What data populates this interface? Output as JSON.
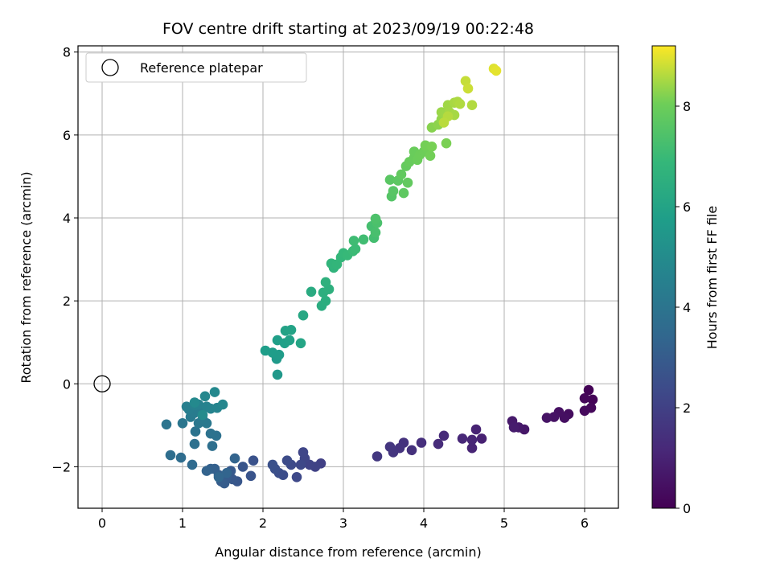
{
  "chart_data": {
    "type": "scatter",
    "title": "FOV centre drift starting at 2023/09/19 00:22:48",
    "xlabel": "Angular distance from reference (arcmin)",
    "ylabel": "Rotation from reference (arcmin)",
    "xlim": [
      -0.3,
      6.42
    ],
    "ylim": [
      -3.0,
      8.15
    ],
    "xticks": [
      0,
      1,
      2,
      3,
      4,
      5,
      6
    ],
    "yticks": [
      -2,
      0,
      2,
      4,
      6,
      8
    ],
    "xtick_labels": [
      "0",
      "1",
      "2",
      "3",
      "4",
      "5",
      "6"
    ],
    "ytick_labels": [
      "−2",
      "0",
      "2",
      "4",
      "6",
      "8"
    ],
    "grid": true,
    "legend": {
      "position": "top-left",
      "entries": [
        {
          "label": "Reference platepar",
          "marker": "open-circle",
          "x": 0,
          "y": 0
        }
      ]
    },
    "colorbar": {
      "label": "Hours from first FF file",
      "colormap": "viridis",
      "range": [
        0,
        9.2
      ],
      "ticks": [
        0,
        2,
        4,
        6,
        8
      ],
      "tick_labels": [
        "0",
        "2",
        "4",
        "6",
        "8"
      ]
    },
    "points": [
      [
        6.05,
        -0.15,
        0.05
      ],
      [
        6.1,
        -0.38,
        0.1
      ],
      [
        6.0,
        -0.35,
        0.15
      ],
      [
        6.08,
        -0.58,
        0.2
      ],
      [
        6.0,
        -0.65,
        0.25
      ],
      [
        5.8,
        -0.73,
        0.35
      ],
      [
        5.75,
        -0.82,
        0.4
      ],
      [
        5.68,
        -0.68,
        0.45
      ],
      [
        5.62,
        -0.8,
        0.5
      ],
      [
        5.53,
        -0.82,
        0.55
      ],
      [
        5.25,
        -1.1,
        0.65
      ],
      [
        5.18,
        -1.05,
        0.7
      ],
      [
        5.1,
        -0.9,
        0.75
      ],
      [
        5.12,
        -1.05,
        0.8
      ],
      [
        4.72,
        -1.32,
        0.95
      ],
      [
        4.65,
        -1.1,
        1.0
      ],
      [
        4.6,
        -1.55,
        1.05
      ],
      [
        4.6,
        -1.35,
        1.1
      ],
      [
        4.48,
        -1.32,
        1.15
      ],
      [
        4.25,
        -1.25,
        1.25
      ],
      [
        4.18,
        -1.45,
        1.3
      ],
      [
        3.97,
        -1.42,
        1.4
      ],
      [
        3.85,
        -1.6,
        1.45
      ],
      [
        3.75,
        -1.42,
        1.5
      ],
      [
        3.7,
        -1.55,
        1.55
      ],
      [
        3.62,
        -1.65,
        1.6
      ],
      [
        3.58,
        -1.52,
        1.65
      ],
      [
        3.42,
        -1.75,
        1.7
      ],
      [
        2.72,
        -1.92,
        2.0
      ],
      [
        2.65,
        -2.0,
        2.05
      ],
      [
        2.58,
        -1.95,
        2.1
      ],
      [
        2.52,
        -1.8,
        2.15
      ],
      [
        2.5,
        -1.65,
        2.2
      ],
      [
        2.47,
        -1.95,
        2.25
      ],
      [
        2.42,
        -2.25,
        2.3
      ],
      [
        2.35,
        -1.95,
        2.35
      ],
      [
        2.3,
        -1.85,
        2.4
      ],
      [
        2.25,
        -2.2,
        2.45
      ],
      [
        2.2,
        -2.15,
        2.5
      ],
      [
        2.15,
        -2.05,
        2.55
      ],
      [
        2.12,
        -1.95,
        2.6
      ],
      [
        1.88,
        -1.85,
        2.65
      ],
      [
        1.85,
        -2.22,
        2.7
      ],
      [
        1.75,
        -2.0,
        2.75
      ],
      [
        1.68,
        -2.35,
        2.8
      ],
      [
        1.62,
        -2.3,
        2.85
      ],
      [
        1.6,
        -2.1,
        2.9
      ],
      [
        1.55,
        -2.25,
        2.95
      ],
      [
        1.52,
        -2.4,
        3.0
      ],
      [
        1.48,
        -2.35,
        3.05
      ],
      [
        1.45,
        -2.2,
        3.1
      ],
      [
        1.4,
        -2.05,
        3.15
      ],
      [
        1.35,
        -2.05,
        3.2
      ],
      [
        1.3,
        -2.1,
        3.25
      ],
      [
        1.65,
        -1.8,
        3.3
      ],
      [
        1.55,
        -2.15,
        3.35
      ],
      [
        1.45,
        -2.25,
        3.4
      ],
      [
        1.12,
        -1.95,
        3.6
      ],
      [
        0.98,
        -1.78,
        3.65
      ],
      [
        0.85,
        -1.72,
        3.7
      ],
      [
        1.37,
        -1.5,
        3.75
      ],
      [
        1.15,
        -1.45,
        3.8
      ],
      [
        1.42,
        -1.25,
        3.85
      ],
      [
        1.35,
        -1.2,
        3.9
      ],
      [
        1.16,
        -1.15,
        3.95
      ],
      [
        0.8,
        -0.98,
        4.0
      ],
      [
        1.0,
        -0.95,
        4.05
      ],
      [
        1.2,
        -0.95,
        4.1
      ],
      [
        1.3,
        -0.95,
        4.15
      ],
      [
        1.25,
        -0.85,
        4.2
      ],
      [
        1.1,
        -0.8,
        4.25
      ],
      [
        1.15,
        -0.7,
        4.3
      ],
      [
        1.22,
        -0.65,
        4.35
      ],
      [
        1.08,
        -0.62,
        4.4
      ],
      [
        1.05,
        -0.55,
        4.45
      ],
      [
        1.15,
        -0.52,
        4.5
      ],
      [
        1.2,
        -0.5,
        4.55
      ],
      [
        1.3,
        -0.55,
        4.6
      ],
      [
        1.35,
        -0.6,
        4.65
      ],
      [
        1.43,
        -0.58,
        4.7
      ],
      [
        1.5,
        -0.5,
        4.75
      ],
      [
        1.28,
        -0.3,
        4.8
      ],
      [
        1.4,
        -0.2,
        4.85
      ],
      [
        1.15,
        -0.45,
        4.9
      ],
      [
        1.25,
        -0.75,
        4.95
      ],
      [
        2.18,
        0.22,
        5.5
      ],
      [
        2.17,
        0.6,
        5.6
      ],
      [
        2.2,
        0.7,
        5.65
      ],
      [
        2.12,
        0.75,
        5.7
      ],
      [
        2.03,
        0.8,
        5.75
      ],
      [
        2.18,
        1.05,
        5.8
      ],
      [
        2.27,
        0.98,
        5.85
      ],
      [
        2.33,
        1.05,
        5.9
      ],
      [
        2.28,
        1.28,
        5.95
      ],
      [
        2.35,
        1.3,
        6.0
      ],
      [
        2.47,
        0.98,
        6.05
      ],
      [
        2.5,
        1.65,
        6.15
      ],
      [
        2.6,
        2.22,
        6.3
      ],
      [
        2.73,
        1.88,
        6.4
      ],
      [
        2.78,
        2.0,
        6.45
      ],
      [
        2.75,
        2.2,
        6.5
      ],
      [
        2.82,
        2.28,
        6.55
      ],
      [
        2.78,
        2.45,
        6.6
      ],
      [
        2.88,
        2.8,
        6.7
      ],
      [
        2.85,
        2.9,
        6.75
      ],
      [
        2.92,
        2.88,
        6.8
      ],
      [
        2.97,
        3.05,
        6.85
      ],
      [
        3.0,
        3.15,
        6.9
      ],
      [
        3.05,
        3.1,
        6.95
      ],
      [
        3.12,
        3.2,
        7.0
      ],
      [
        3.15,
        3.25,
        7.05
      ],
      [
        3.13,
        3.45,
        7.1
      ],
      [
        3.25,
        3.48,
        7.15
      ],
      [
        3.38,
        3.52,
        7.2
      ],
      [
        3.35,
        3.8,
        7.25
      ],
      [
        3.4,
        3.65,
        7.3
      ],
      [
        3.42,
        3.88,
        7.35
      ],
      [
        3.4,
        3.98,
        7.4
      ],
      [
        3.6,
        4.52,
        7.55
      ],
      [
        3.62,
        4.65,
        7.6
      ],
      [
        3.58,
        4.92,
        7.65
      ],
      [
        3.68,
        4.9,
        7.7
      ],
      [
        3.75,
        4.6,
        7.75
      ],
      [
        3.72,
        5.05,
        7.8
      ],
      [
        3.8,
        4.85,
        7.82
      ],
      [
        3.78,
        5.25,
        7.85
      ],
      [
        3.82,
        5.35,
        7.9
      ],
      [
        3.88,
        5.45,
        7.93
      ],
      [
        3.88,
        5.6,
        7.95
      ],
      [
        3.92,
        5.4,
        7.98
      ],
      [
        3.95,
        5.52,
        8.0
      ],
      [
        4.0,
        5.6,
        8.02
      ],
      [
        4.05,
        5.65,
        8.05
      ],
      [
        4.08,
        5.5,
        8.08
      ],
      [
        4.02,
        5.75,
        8.1
      ],
      [
        4.1,
        5.72,
        8.12
      ],
      [
        4.28,
        5.8,
        8.15
      ],
      [
        4.1,
        6.18,
        8.25
      ],
      [
        4.18,
        6.25,
        8.3
      ],
      [
        4.22,
        6.38,
        8.35
      ],
      [
        4.22,
        6.55,
        8.4
      ],
      [
        4.27,
        6.5,
        8.42
      ],
      [
        4.3,
        6.72,
        8.45
      ],
      [
        4.32,
        6.55,
        8.48
      ],
      [
        4.38,
        6.48,
        8.5
      ],
      [
        4.38,
        6.78,
        8.52
      ],
      [
        4.42,
        6.8,
        8.55
      ],
      [
        4.45,
        6.75,
        8.58
      ],
      [
        4.6,
        6.72,
        8.6
      ],
      [
        4.3,
        6.45,
        8.62
      ],
      [
        4.25,
        6.3,
        8.65
      ],
      [
        4.52,
        7.3,
        8.75
      ],
      [
        4.55,
        7.12,
        8.8
      ],
      [
        4.87,
        7.6,
        8.95
      ],
      [
        4.9,
        7.55,
        9.0
      ]
    ]
  }
}
